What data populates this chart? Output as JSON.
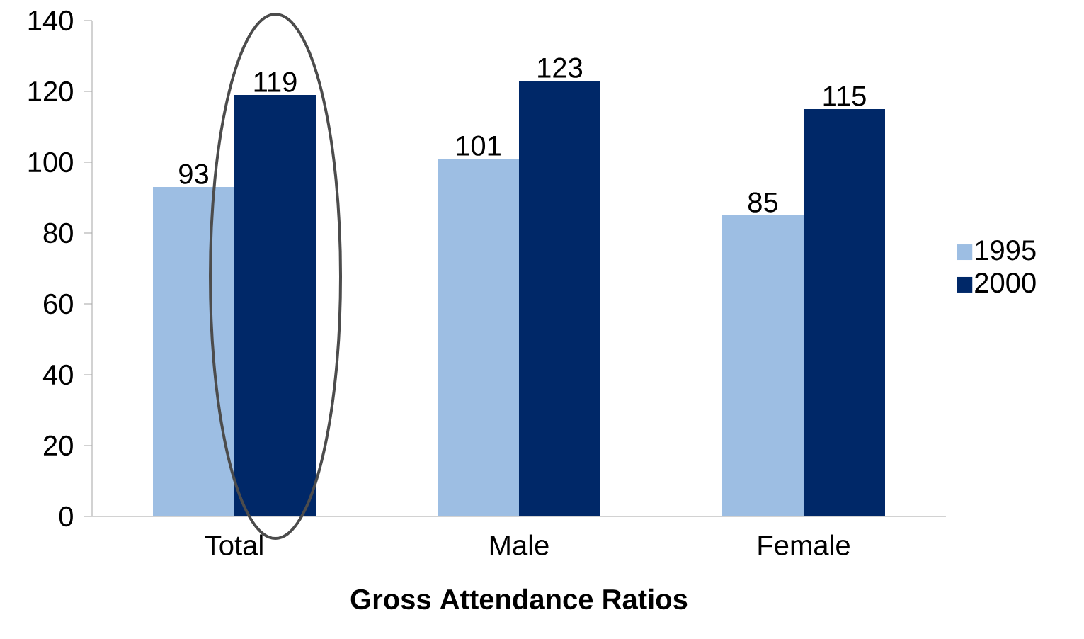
{
  "chart_data": {
    "type": "bar",
    "xlabel": "**Gross Attendance Ratios**",
    "categories": [
      "Total",
      "Male",
      "Female"
    ],
    "series": [
      {
        "name": "1995",
        "color": "#9dbee3",
        "values": [
          93,
          101,
          85
        ]
      },
      {
        "name": "2000",
        "color": "#002868",
        "values": [
          119,
          123,
          115
        ]
      }
    ],
    "ylim": [
      0,
      140
    ],
    "yticks": [
      0,
      20,
      40,
      60,
      80,
      100,
      120,
      140
    ],
    "data_labels": true,
    "legend": "right",
    "grid": false
  }
}
